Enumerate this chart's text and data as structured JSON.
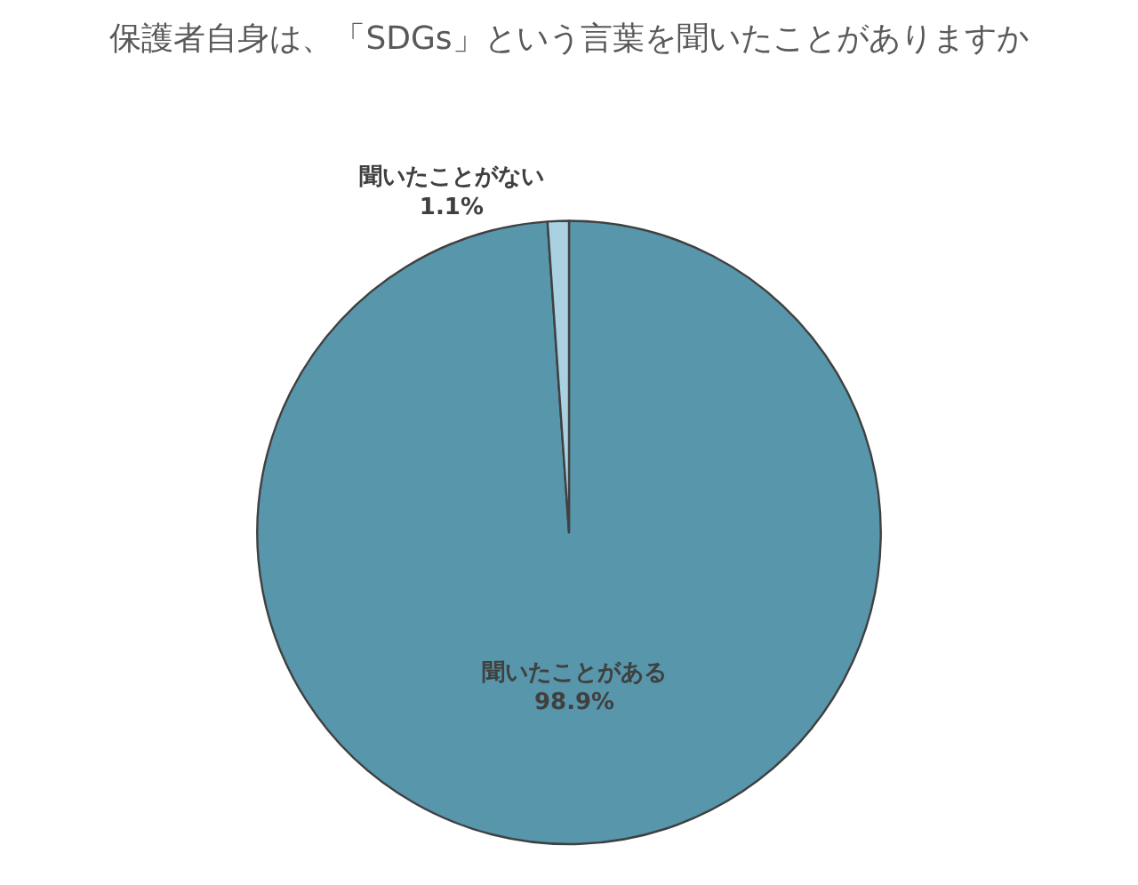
{
  "chart_data": {
    "type": "pie",
    "title": "保護者自身は、「SDGs」という言葉を聞いたことがありますか",
    "categories": [
      "聞いたことがある",
      "聞いたことがない"
    ],
    "values": [
      98.9,
      1.1
    ],
    "value_labels": [
      "98.9%",
      "1.1%"
    ],
    "colors": [
      "#5796ab",
      "#a9d1e2"
    ],
    "legend": false
  }
}
